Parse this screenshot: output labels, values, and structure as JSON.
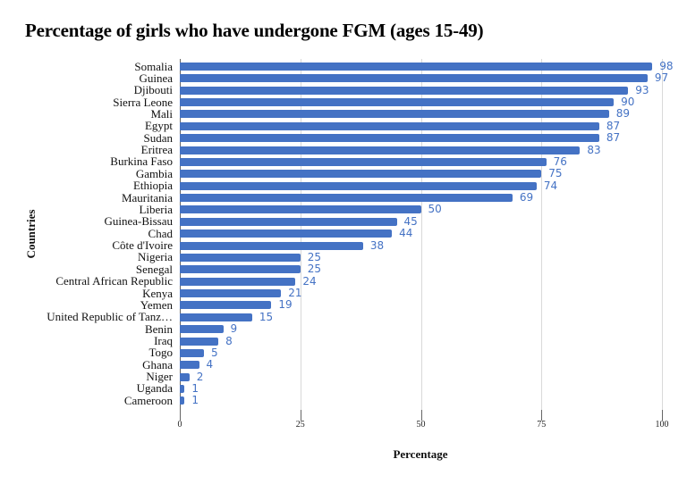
{
  "chart_data": {
    "type": "bar",
    "orientation": "horizontal",
    "title": "Percentage of girls who have undergone FGM (ages 15-49)",
    "xlabel": "Percentage",
    "ylabel": "Countries",
    "xlim": [
      0,
      100
    ],
    "xticks": [
      "0",
      "25",
      "50",
      "75",
      "100"
    ],
    "grid": true,
    "legend": null,
    "bar_color": "#4472c4",
    "data_labels": true,
    "categories": [
      "Somalia",
      "Guinea",
      "Djibouti",
      "Sierra Leone",
      "Mali",
      "Egypt",
      "Sudan",
      "Eritrea",
      "Burkina Faso",
      "Gambia",
      "Ethiopia",
      "Mauritania",
      "Liberia",
      "Guinea-Bissau",
      "Chad",
      "Côte d'Ivoire",
      "Nigeria",
      "Senegal",
      "Central African Republic",
      "Kenya",
      "Yemen",
      "United Republic of Tanz…",
      "Benin",
      "Iraq",
      "Togo",
      "Ghana",
      "Niger",
      "Uganda",
      "Cameroon"
    ],
    "values": [
      98,
      97,
      93,
      90,
      89,
      87,
      87,
      83,
      76,
      75,
      74,
      69,
      50,
      45,
      44,
      38,
      25,
      25,
      24,
      21,
      19,
      15,
      9,
      8,
      5,
      4,
      2,
      1,
      1
    ]
  }
}
